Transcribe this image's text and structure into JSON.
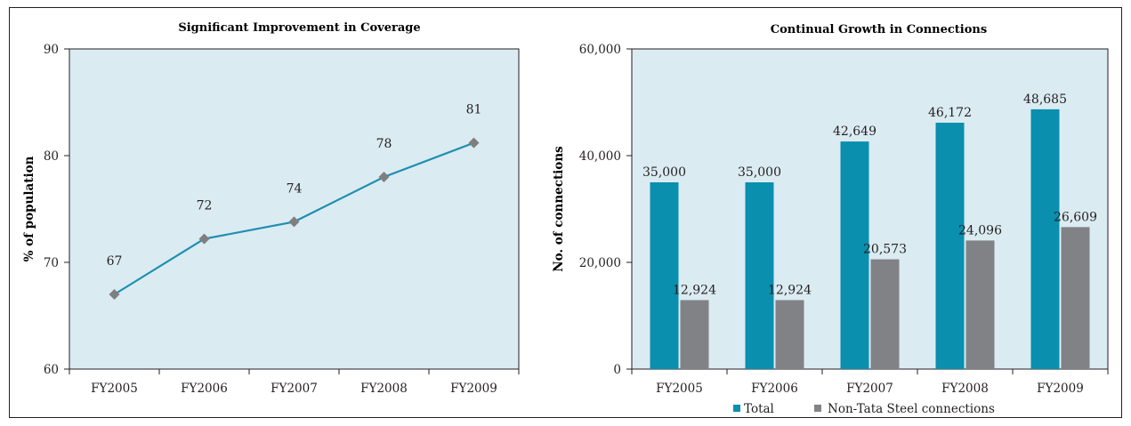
{
  "colors": {
    "plot_bg": "#dbebf2",
    "line": "#1e8fb0",
    "marker": "#7f7f80",
    "total_bar": "#0a8fae",
    "non_tata_bar": "#818285",
    "axis": "#231f20"
  },
  "chart_data": [
    {
      "type": "line",
      "title": "Significant Improvement in Coverage",
      "xlabel": "",
      "ylabel": "% of population",
      "ylim": [
        60,
        90
      ],
      "yticks": [
        "60",
        "70",
        "80",
        "90"
      ],
      "categories": [
        "FY2005",
        "FY2006",
        "FY2007",
        "FY2008",
        "FY2009"
      ],
      "values": [
        67,
        72.2,
        73.8,
        78,
        81.2
      ],
      "data_labels": [
        "67",
        "72",
        "74",
        "78",
        "81"
      ],
      "grid": false
    },
    {
      "type": "bar",
      "title": "Continual Growth in Connections",
      "xlabel": "",
      "ylabel": "No. of connections",
      "ylim": [
        0,
        60000
      ],
      "yticks": [
        "0",
        "20,000",
        "40,000",
        "60,000"
      ],
      "categories": [
        "FY2005",
        "FY2006",
        "FY2007",
        "FY2008",
        "FY2009"
      ],
      "series": [
        {
          "name": "Total",
          "values": [
            35000,
            35000,
            42649,
            46172,
            48685
          ],
          "data_labels": [
            "35,000",
            "35,000",
            "42,649",
            "46,172",
            "48,685"
          ]
        },
        {
          "name": "Non-Tata Steel connections",
          "values": [
            12924,
            12924,
            20573,
            24096,
            26609
          ],
          "data_labels": [
            "12,924",
            "12,924",
            "20,573",
            "24,096",
            "26,609"
          ]
        }
      ],
      "legend": "bottom",
      "grid": false
    }
  ]
}
